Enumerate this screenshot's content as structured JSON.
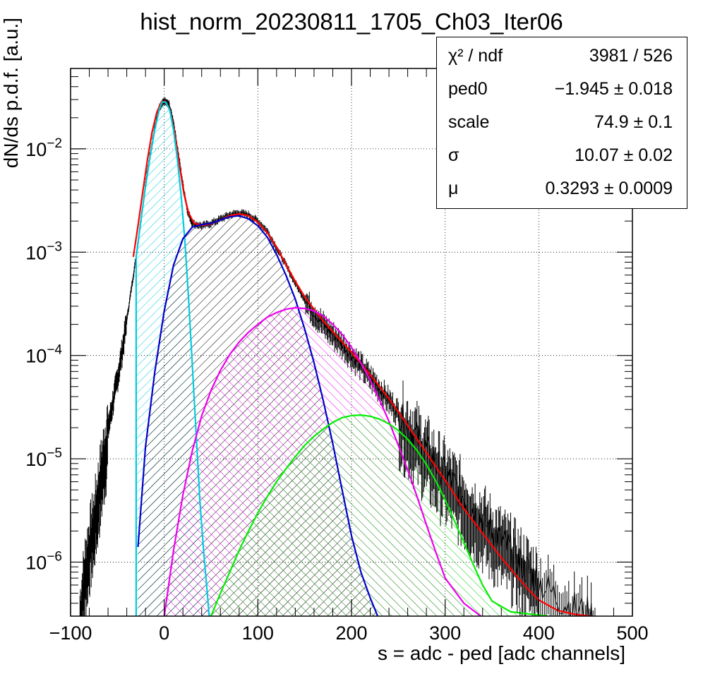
{
  "chart_data": {
    "type": "histogram",
    "title": "hist_norm_20230811_1705_Ch03_Iter06",
    "xlabel": "s = adc - ped [adc channels]",
    "ylabel": "dN/ds p.d.f. [a.u.]",
    "xlim": [
      -100,
      500
    ],
    "ylim": [
      3e-07,
      0.06
    ],
    "yscale": "log",
    "grid": true,
    "legend_position": "top-right",
    "x_ticks": [
      {
        "value": -100,
        "label": "−100"
      },
      {
        "value": 0,
        "label": "0"
      },
      {
        "value": 100,
        "label": "100"
      },
      {
        "value": 200,
        "label": "200"
      },
      {
        "value": 300,
        "label": "300"
      },
      {
        "value": 400,
        "label": "400"
      },
      {
        "value": 500,
        "label": "500"
      }
    ],
    "y_ticks": [
      {
        "value": 1e-06,
        "mantissa": "10",
        "exponent": "−6"
      },
      {
        "value": 1e-05,
        "mantissa": "10",
        "exponent": "−5"
      },
      {
        "value": 0.0001,
        "mantissa": "10",
        "exponent": "−4"
      },
      {
        "value": 0.001,
        "mantissa": "10",
        "exponent": "−3"
      },
      {
        "value": 0.01,
        "mantissa": "10",
        "exponent": "−2"
      }
    ],
    "stats": [
      {
        "name": "χ² / ndf",
        "value": "3981 / 526"
      },
      {
        "name": "ped0",
        "value": "−1.945 ± 0.018"
      },
      {
        "name": "scale",
        "value": "74.9 ± 0.1"
      },
      {
        "name": "σ",
        "value": "10.07 ± 0.02"
      },
      {
        "name": "μ",
        "value": "0.3293 ± 0.0009"
      }
    ],
    "series": [
      {
        "kind": "data",
        "color": "#000000",
        "points": [
          [
            -90,
            3e-07
          ],
          [
            -85,
            8e-07
          ],
          [
            -80,
            1.5e-06
          ],
          [
            -75,
            2.5e-06
          ],
          [
            -70,
            5e-06
          ],
          [
            -65,
            1e-05
          ],
          [
            -60,
            2e-05
          ],
          [
            -55,
            3.5e-05
          ],
          [
            -50,
            6e-05
          ],
          [
            -45,
            0.00011
          ],
          [
            -40,
            0.00022
          ],
          [
            -35,
            0.00045
          ],
          [
            -30,
            0.0009
          ],
          [
            -25,
            0.002
          ],
          [
            -20,
            0.0045
          ],
          [
            -15,
            0.009
          ],
          [
            -10,
            0.016
          ],
          [
            -5,
            0.025
          ],
          [
            0,
            0.029
          ],
          [
            5,
            0.027
          ],
          [
            10,
            0.018
          ],
          [
            15,
            0.009
          ],
          [
            20,
            0.0045
          ],
          [
            25,
            0.0025
          ],
          [
            30,
            0.0019
          ],
          [
            40,
            0.0018
          ],
          [
            50,
            0.0019
          ],
          [
            60,
            0.0021
          ],
          [
            70,
            0.0023
          ],
          [
            80,
            0.0024
          ],
          [
            90,
            0.0023
          ],
          [
            100,
            0.002
          ],
          [
            110,
            0.0016
          ],
          [
            120,
            0.0011
          ],
          [
            130,
            0.00075
          ],
          [
            140,
            0.0005
          ],
          [
            150,
            0.00035
          ],
          [
            160,
            0.00026
          ],
          [
            170,
            0.0002
          ],
          [
            180,
            0.00016
          ],
          [
            190,
            0.00013
          ],
          [
            200,
            0.0001
          ],
          [
            210,
            8e-05
          ],
          [
            220,
            6.2e-05
          ],
          [
            230,
            4.8e-05
          ],
          [
            240,
            3.7e-05
          ],
          [
            250,
            2.8e-05
          ],
          [
            260,
            2.1e-05
          ],
          [
            270,
            1.6e-05
          ],
          [
            280,
            1.2e-05
          ],
          [
            290,
            9e-06
          ],
          [
            300,
            7e-06
          ],
          [
            310,
            5.5e-06
          ],
          [
            320,
            4.3e-06
          ],
          [
            330,
            3.3e-06
          ],
          [
            340,
            2.6e-06
          ],
          [
            350,
            2e-06
          ],
          [
            360,
            1.6e-06
          ],
          [
            370,
            1.3e-06
          ],
          [
            380,
            1e-06
          ],
          [
            390,
            8e-07
          ],
          [
            400,
            6.5e-07
          ],
          [
            420,
            4.5e-07
          ],
          [
            440,
            3.5e-07
          ],
          [
            460,
            3e-07
          ]
        ]
      },
      {
        "kind": "fit-total",
        "color": "#ff0000",
        "points": [
          [
            -33,
            0.0009
          ],
          [
            -28,
            0.0018
          ],
          [
            -23,
            0.0038
          ],
          [
            -18,
            0.0078
          ],
          [
            -13,
            0.0145
          ],
          [
            -8,
            0.0225
          ],
          [
            -3,
            0.0285
          ],
          [
            1,
            0.0288
          ],
          [
            6,
            0.024
          ],
          [
            11,
            0.0145
          ],
          [
            16,
            0.0072
          ],
          [
            21,
            0.0037
          ],
          [
            26,
            0.0024
          ],
          [
            32,
            0.0019
          ],
          [
            40,
            0.00182
          ],
          [
            50,
            0.00188
          ],
          [
            60,
            0.00205
          ],
          [
            70,
            0.00226
          ],
          [
            80,
            0.00235
          ],
          [
            90,
            0.00225
          ],
          [
            100,
            0.00195
          ],
          [
            110,
            0.00155
          ],
          [
            120,
            0.00112
          ],
          [
            130,
            0.00076
          ],
          [
            140,
            0.00052
          ],
          [
            150,
            0.00037
          ],
          [
            160,
            0.00028
          ],
          [
            170,
            0.000215
          ],
          [
            180,
            0.00017
          ],
          [
            190,
            0.000135
          ],
          [
            200,
            0.000107
          ],
          [
            210,
            8.4e-05
          ],
          [
            220,
            6.5e-05
          ],
          [
            230,
            5e-05
          ],
          [
            240,
            3.8e-05
          ],
          [
            250,
            2.85e-05
          ],
          [
            260,
            2.1e-05
          ],
          [
            270,
            1.55e-05
          ],
          [
            280,
            1.15e-05
          ],
          [
            290,
            8.4e-06
          ],
          [
            300,
            6.2e-06
          ],
          [
            310,
            4.5e-06
          ],
          [
            320,
            3.3e-06
          ],
          [
            330,
            2.5e-06
          ],
          [
            340,
            1.9e-06
          ],
          [
            350,
            1.45e-06
          ],
          [
            360,
            1.1e-06
          ],
          [
            370,
            8.6e-07
          ],
          [
            380,
            6.7e-07
          ],
          [
            390,
            5.3e-07
          ],
          [
            400,
            4.3e-07
          ],
          [
            420,
            3.4e-07
          ],
          [
            440,
            3.1e-07
          ],
          [
            455,
            3e-07
          ]
        ]
      },
      {
        "kind": "pedestal",
        "color": "#00ccdd",
        "hatch": "cyan",
        "points": [
          [
            -30,
            3e-07
          ],
          [
            -30,
            0.0009
          ],
          [
            -25,
            0.002
          ],
          [
            -20,
            0.0043
          ],
          [
            -15,
            0.0085
          ],
          [
            -10,
            0.0155
          ],
          [
            -5,
            0.0245
          ],
          [
            -2,
            0.0285
          ],
          [
            2,
            0.0282
          ],
          [
            6,
            0.0235
          ],
          [
            10,
            0.015
          ],
          [
            14,
            0.008
          ],
          [
            18,
            0.0036
          ],
          [
            22,
            0.0013
          ],
          [
            26,
            0.00035
          ],
          [
            30,
            8e-05
          ],
          [
            34,
            1.8e-05
          ],
          [
            38,
            4e-06
          ],
          [
            42,
            1.3e-06
          ],
          [
            46,
            5e-07
          ],
          [
            48,
            3e-07
          ]
        ]
      },
      {
        "kind": "one-pe",
        "color": "#0000cc",
        "hatch": "black",
        "points": [
          [
            -28,
            1.4e-06
          ],
          [
            -20,
            1.3e-05
          ],
          [
            -10,
            7e-05
          ],
          [
            0,
            0.00027
          ],
          [
            10,
            0.00075
          ],
          [
            20,
            0.00135
          ],
          [
            30,
            0.00175
          ],
          [
            40,
            0.00185
          ],
          [
            50,
            0.0019
          ],
          [
            60,
            0.00205
          ],
          [
            70,
            0.0022
          ],
          [
            80,
            0.00225
          ],
          [
            90,
            0.0021
          ],
          [
            100,
            0.0018
          ],
          [
            110,
            0.0014
          ],
          [
            120,
            0.00095
          ],
          [
            130,
            0.0006
          ],
          [
            140,
            0.00035
          ],
          [
            150,
            0.00018
          ],
          [
            160,
            8.5e-05
          ],
          [
            170,
            3.6e-05
          ],
          [
            180,
            1.4e-05
          ],
          [
            190,
            5e-06
          ],
          [
            200,
            1.8e-06
          ],
          [
            210,
            8e-07
          ],
          [
            220,
            4.5e-07
          ],
          [
            228,
            3e-07
          ]
        ]
      },
      {
        "kind": "two-pe",
        "color": "#ee00ee",
        "hatch": "magenta",
        "points": [
          [
            0,
            3e-07
          ],
          [
            10,
            1.3e-06
          ],
          [
            20,
            4.5e-06
          ],
          [
            30,
            1.2e-05
          ],
          [
            40,
            2.6e-05
          ],
          [
            50,
            4.6e-05
          ],
          [
            60,
            7.2e-05
          ],
          [
            70,
            0.000102
          ],
          [
            80,
            0.000135
          ],
          [
            90,
            0.000168
          ],
          [
            100,
            0.0002
          ],
          [
            110,
            0.000235
          ],
          [
            120,
            0.00026
          ],
          [
            130,
            0.00028
          ],
          [
            140,
            0.00029
          ],
          [
            150,
            0.000285
          ],
          [
            160,
            0.00027
          ],
          [
            170,
            0.00024
          ],
          [
            180,
            0.0002
          ],
          [
            190,
            0.00016
          ],
          [
            200,
            0.00012
          ],
          [
            210,
            8.5e-05
          ],
          [
            220,
            5.8e-05
          ],
          [
            230,
            3.7e-05
          ],
          [
            240,
            2.3e-05
          ],
          [
            250,
            1.35e-05
          ],
          [
            260,
            7.8e-06
          ],
          [
            270,
            4.3e-06
          ],
          [
            280,
            2.3e-06
          ],
          [
            290,
            1.25e-06
          ],
          [
            300,
            7e-07
          ],
          [
            320,
            4e-07
          ],
          [
            338,
            3e-07
          ]
        ]
      },
      {
        "kind": "three-pe",
        "color": "#00ee00",
        "hatch": "green",
        "points": [
          [
            50,
            3e-07
          ],
          [
            60,
            5e-07
          ],
          [
            70,
            8e-07
          ],
          [
            80,
            1.3e-06
          ],
          [
            90,
            2e-06
          ],
          [
            100,
            3e-06
          ],
          [
            110,
            4.3e-06
          ],
          [
            120,
            6e-06
          ],
          [
            130,
            8e-06
          ],
          [
            140,
            1.05e-05
          ],
          [
            150,
            1.35e-05
          ],
          [
            160,
            1.65e-05
          ],
          [
            170,
            1.95e-05
          ],
          [
            180,
            2.25e-05
          ],
          [
            190,
            2.5e-05
          ],
          [
            200,
            2.62e-05
          ],
          [
            210,
            2.65e-05
          ],
          [
            220,
            2.58e-05
          ],
          [
            230,
            2.42e-05
          ],
          [
            240,
            2.18e-05
          ],
          [
            250,
            1.88e-05
          ],
          [
            260,
            1.55e-05
          ],
          [
            270,
            1.2e-05
          ],
          [
            280,
            8.8e-06
          ],
          [
            290,
            6.1e-06
          ],
          [
            300,
            4e-06
          ],
          [
            310,
            2.5e-06
          ],
          [
            320,
            1.55e-06
          ],
          [
            330,
            9.5e-07
          ],
          [
            340,
            6e-07
          ],
          [
            350,
            4.2e-07
          ],
          [
            370,
            3.3e-07
          ],
          [
            410,
            3e-07
          ]
        ]
      }
    ]
  }
}
